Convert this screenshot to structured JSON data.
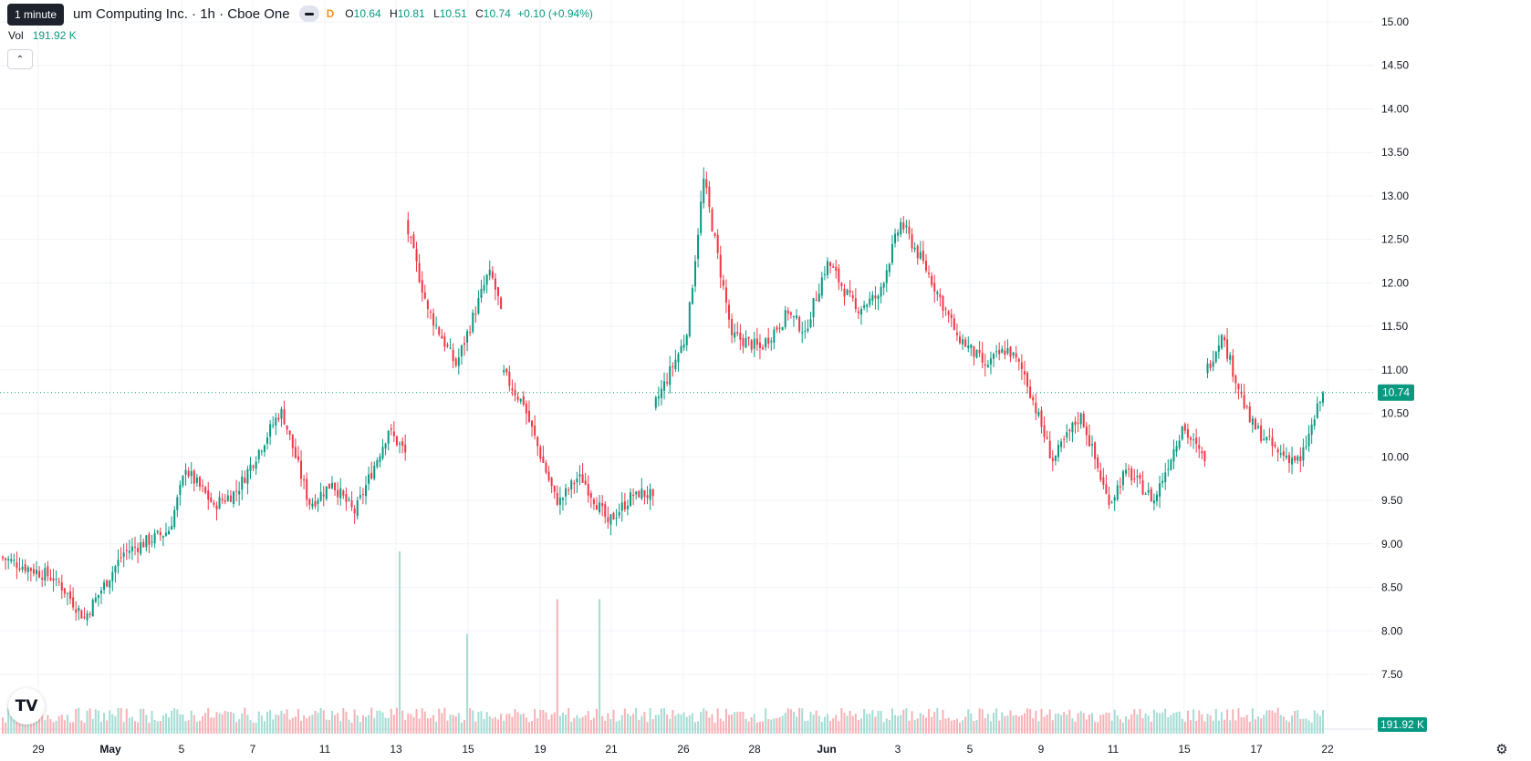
{
  "header": {
    "title": "um Computing Inc. · 1h · Cboe One",
    "tooltip": "1 minute",
    "badge": "D",
    "ohlc": {
      "o_label": "O",
      "o_value": "10.64",
      "h_label": "H",
      "h_value": "10.81",
      "l_label": "L",
      "l_value": "10.51",
      "c_label": "C",
      "c_value": "10.74",
      "change": "+0.10 (+0.94%)"
    },
    "volume_label": "Vol",
    "volume_value": "191.92 K",
    "collapse_icon": "chevron-up-icon"
  },
  "price_label": "10.74",
  "volume_label_axis": "191.92 K",
  "colors": {
    "up": "#089981",
    "down": "#f23645",
    "up_vol": "#a5dcd4",
    "down_vol": "#f7b1b6",
    "grid": "#f0f3fa"
  },
  "logo_text": "TV",
  "chart_data": {
    "type": "candlestick",
    "interval": "1h",
    "y_ticks": [
      "15.00",
      "14.50",
      "14.00",
      "13.50",
      "13.00",
      "12.50",
      "12.00",
      "11.50",
      "11.00",
      "10.50",
      "10.00",
      "9.50",
      "9.00",
      "8.50",
      "8.00",
      "7.50"
    ],
    "ylim": [
      7.5,
      15.0
    ],
    "x_ticks": [
      {
        "label": "29",
        "bold": false
      },
      {
        "label": "May",
        "bold": true
      },
      {
        "label": "5",
        "bold": false
      },
      {
        "label": "7",
        "bold": false
      },
      {
        "label": "11",
        "bold": false
      },
      {
        "label": "13",
        "bold": false
      },
      {
        "label": "15",
        "bold": false
      },
      {
        "label": "19",
        "bold": false
      },
      {
        "label": "21",
        "bold": false
      },
      {
        "label": "26",
        "bold": false
      },
      {
        "label": "28",
        "bold": false
      },
      {
        "label": "Jun",
        "bold": true
      },
      {
        "label": "3",
        "bold": false
      },
      {
        "label": "5",
        "bold": false
      },
      {
        "label": "9",
        "bold": false
      },
      {
        "label": "11",
        "bold": false
      },
      {
        "label": "15",
        "bold": false
      },
      {
        "label": "17",
        "bold": false
      },
      {
        "label": "22",
        "bold": false
      }
    ],
    "last_close": 10.74,
    "last_volume": "191.92 K",
    "volume_max": 4200,
    "volume_spikes": [
      {
        "at": 0.3,
        "value": 4200
      },
      {
        "at": 0.35,
        "value": 2300
      },
      {
        "at": 0.42,
        "value": 3100
      },
      {
        "at": 0.45,
        "value": 3100
      }
    ],
    "segments": [
      [
        0,
        8.85,
        8.6,
        20
      ],
      [
        13,
        8.6,
        8.15,
        10
      ],
      [
        30,
        8.15,
        8.9,
        14
      ],
      [
        45,
        8.9,
        9.15,
        16
      ],
      [
        52,
        9.15,
        9.85,
        6
      ],
      [
        60,
        9.85,
        9.45,
        10
      ],
      [
        70,
        9.45,
        9.6,
        8
      ],
      [
        78,
        9.6,
        10.55,
        16
      ],
      [
        90,
        10.55,
        9.45,
        10
      ],
      [
        98,
        9.45,
        9.7,
        8
      ],
      [
        106,
        9.7,
        9.35,
        8
      ],
      [
        112,
        9.35,
        10.3,
        12
      ],
      [
        120,
        10.3,
        10.05,
        6
      ],
      [
        125,
        12.7,
        11.7,
        8
      ],
      [
        132,
        11.7,
        11.05,
        10
      ],
      [
        140,
        11.05,
        12.15,
        12
      ],
      [
        148,
        12.15,
        11.7,
        4
      ],
      [
        151,
        11.0,
        10.6,
        8
      ],
      [
        158,
        10.6,
        9.45,
        12
      ],
      [
        167,
        9.45,
        9.8,
        8
      ],
      [
        173,
        9.8,
        9.25,
        10
      ],
      [
        181,
        9.25,
        9.6,
        10
      ],
      [
        188,
        9.6,
        9.55,
        6
      ],
      [
        193,
        10.55,
        11.4,
        12
      ],
      [
        202,
        11.4,
        13.2,
        6
      ],
      [
        207,
        13.2,
        11.4,
        10
      ],
      [
        215,
        11.4,
        11.25,
        10
      ],
      [
        222,
        11.25,
        11.65,
        10
      ],
      [
        230,
        11.65,
        11.45,
        6
      ],
      [
        234,
        11.45,
        12.25,
        8
      ],
      [
        240,
        12.25,
        11.7,
        10
      ],
      [
        248,
        11.7,
        11.85,
        8
      ],
      [
        254,
        11.85,
        12.7,
        8
      ],
      [
        260,
        12.7,
        12.1,
        10
      ],
      [
        268,
        12.1,
        11.4,
        10
      ],
      [
        276,
        11.4,
        11.05,
        10
      ],
      [
        284,
        11.05,
        11.25,
        8
      ],
      [
        290,
        11.25,
        10.95,
        6
      ],
      [
        294,
        10.95,
        9.95,
        10
      ],
      [
        302,
        9.95,
        10.5,
        10
      ],
      [
        310,
        10.5,
        9.45,
        10
      ],
      [
        318,
        9.45,
        9.85,
        6
      ],
      [
        322,
        9.85,
        9.5,
        10
      ],
      [
        330,
        9.5,
        10.35,
        10
      ],
      [
        338,
        10.35,
        9.95,
        8
      ],
      [
        345,
        10.95,
        11.4,
        6
      ],
      [
        350,
        11.4,
        10.4,
        10
      ],
      [
        357,
        10.4,
        10.05,
        10
      ],
      [
        365,
        10.05,
        9.95,
        8
      ],
      [
        372,
        9.95,
        10.74,
        8
      ]
    ]
  }
}
